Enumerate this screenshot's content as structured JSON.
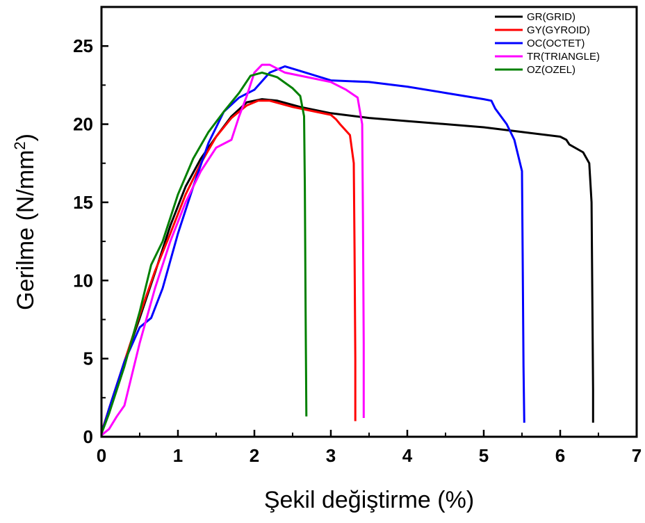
{
  "chart_data": {
    "type": "line",
    "xlabel": "Şekil değiştirme (%)",
    "ylabel_main": "Gerilme (N/mm",
    "ylabel_sup": "2",
    "ylabel_end": ")",
    "xlim": [
      0,
      7
    ],
    "ylim": [
      0,
      27.5
    ],
    "x_ticks": [
      0,
      1,
      2,
      3,
      4,
      5,
      6,
      7
    ],
    "y_ticks": [
      0,
      5,
      10,
      15,
      20,
      25
    ],
    "grid": false,
    "legend_position": "top-right",
    "series": [
      {
        "name": "GR(GRID)",
        "color": "#000000",
        "points": [
          [
            0,
            0.2
          ],
          [
            0.1,
            1.8
          ],
          [
            0.3,
            4.8
          ],
          [
            0.5,
            7.6
          ],
          [
            0.7,
            10.5
          ],
          [
            0.9,
            13.5
          ],
          [
            1.1,
            16.0
          ],
          [
            1.3,
            17.8
          ],
          [
            1.5,
            19.2
          ],
          [
            1.7,
            20.5
          ],
          [
            1.9,
            21.4
          ],
          [
            2.1,
            21.6
          ],
          [
            2.3,
            21.5
          ],
          [
            2.6,
            21.1
          ],
          [
            3.0,
            20.7
          ],
          [
            3.5,
            20.4
          ],
          [
            4.0,
            20.2
          ],
          [
            4.5,
            20.0
          ],
          [
            5.0,
            19.8
          ],
          [
            5.5,
            19.5
          ],
          [
            6.0,
            19.2
          ],
          [
            6.08,
            19.0
          ],
          [
            6.12,
            18.7
          ],
          [
            6.3,
            18.2
          ],
          [
            6.38,
            17.5
          ],
          [
            6.41,
            15.0
          ],
          [
            6.42,
            9.0
          ],
          [
            6.43,
            3.0
          ],
          [
            6.43,
            0.9
          ]
        ]
      },
      {
        "name": "GY(GYROID)",
        "color": "#ff0000",
        "points": [
          [
            0,
            0.3
          ],
          [
            0.1,
            1.8
          ],
          [
            0.3,
            4.8
          ],
          [
            0.5,
            7.8
          ],
          [
            0.7,
            10.6
          ],
          [
            0.9,
            13.0
          ],
          [
            1.1,
            15.5
          ],
          [
            1.3,
            17.5
          ],
          [
            1.5,
            19.2
          ],
          [
            1.7,
            20.4
          ],
          [
            1.9,
            21.2
          ],
          [
            2.05,
            21.5
          ],
          [
            2.2,
            21.5
          ],
          [
            2.5,
            21.1
          ],
          [
            2.8,
            20.8
          ],
          [
            3.0,
            20.6
          ],
          [
            3.07,
            20.3
          ],
          [
            3.12,
            20.0
          ],
          [
            3.25,
            19.3
          ],
          [
            3.3,
            17.5
          ],
          [
            3.31,
            12.0
          ],
          [
            3.32,
            5.0
          ],
          [
            3.32,
            1.0
          ]
        ]
      },
      {
        "name": "OC(OCTET)",
        "color": "#0000ff",
        "points": [
          [
            0,
            0.2
          ],
          [
            0.1,
            1.8
          ],
          [
            0.3,
            4.8
          ],
          [
            0.5,
            7.0
          ],
          [
            0.65,
            7.6
          ],
          [
            0.8,
            9.5
          ],
          [
            1.0,
            13.0
          ],
          [
            1.2,
            16.0
          ],
          [
            1.4,
            18.8
          ],
          [
            1.6,
            20.8
          ],
          [
            1.8,
            21.7
          ],
          [
            2.0,
            22.2
          ],
          [
            2.2,
            23.3
          ],
          [
            2.4,
            23.7
          ],
          [
            2.6,
            23.4
          ],
          [
            3.0,
            22.8
          ],
          [
            3.5,
            22.7
          ],
          [
            4.0,
            22.4
          ],
          [
            4.5,
            22.0
          ],
          [
            5.0,
            21.6
          ],
          [
            5.1,
            21.5
          ],
          [
            5.15,
            21.0
          ],
          [
            5.3,
            20.0
          ],
          [
            5.4,
            19.0
          ],
          [
            5.5,
            17.0
          ],
          [
            5.51,
            11.0
          ],
          [
            5.52,
            4.5
          ],
          [
            5.53,
            0.9
          ]
        ]
      },
      {
        "name": "TR(TRIANGLE)",
        "color": "#ff00ff",
        "points": [
          [
            0,
            0.1
          ],
          [
            0.1,
            0.5
          ],
          [
            0.2,
            1.3
          ],
          [
            0.3,
            2.0
          ],
          [
            0.5,
            6.0
          ],
          [
            0.7,
            9.5
          ],
          [
            0.9,
            12.5
          ],
          [
            1.1,
            15.0
          ],
          [
            1.3,
            17.0
          ],
          [
            1.5,
            18.5
          ],
          [
            1.7,
            19.0
          ],
          [
            1.8,
            20.5
          ],
          [
            1.9,
            21.8
          ],
          [
            2.0,
            23.3
          ],
          [
            2.1,
            23.8
          ],
          [
            2.2,
            23.8
          ],
          [
            2.4,
            23.3
          ],
          [
            2.7,
            23.0
          ],
          [
            3.0,
            22.7
          ],
          [
            3.2,
            22.2
          ],
          [
            3.35,
            21.7
          ],
          [
            3.41,
            20.0
          ],
          [
            3.42,
            14.0
          ],
          [
            3.43,
            6.0
          ],
          [
            3.43,
            1.2
          ]
        ]
      },
      {
        "name": "OZ(OZEL)",
        "color": "#008000",
        "points": [
          [
            0,
            0.2
          ],
          [
            0.1,
            1.5
          ],
          [
            0.3,
            4.5
          ],
          [
            0.5,
            8.0
          ],
          [
            0.65,
            11.0
          ],
          [
            0.8,
            12.5
          ],
          [
            1.0,
            15.5
          ],
          [
            1.2,
            17.8
          ],
          [
            1.4,
            19.5
          ],
          [
            1.6,
            20.8
          ],
          [
            1.8,
            22.0
          ],
          [
            1.95,
            23.1
          ],
          [
            2.1,
            23.3
          ],
          [
            2.3,
            23.0
          ],
          [
            2.5,
            22.3
          ],
          [
            2.6,
            21.8
          ],
          [
            2.65,
            20.5
          ],
          [
            2.66,
            16.0
          ],
          [
            2.67,
            8.0
          ],
          [
            2.68,
            1.3
          ]
        ]
      }
    ]
  }
}
